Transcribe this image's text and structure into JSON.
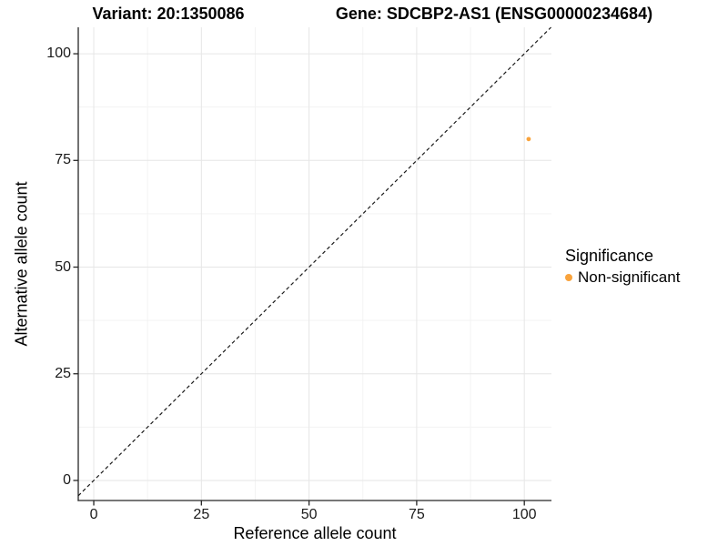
{
  "header": {
    "variant_title": "Variant: 20:1350086",
    "gene_title": "Gene: SDCBP2-AS1 (ENSG00000234684)"
  },
  "chart_data": {
    "type": "scatter",
    "xlabel": "Reference allele count",
    "ylabel": "Alternative allele count",
    "xticks": [
      0,
      25,
      50,
      75,
      100
    ],
    "yticks": [
      0,
      25,
      50,
      75,
      100
    ],
    "minor_ticks": [
      12.5,
      37.5,
      62.5,
      87.5
    ],
    "xlim": [
      -3.6,
      106.3
    ],
    "ylim": [
      -4.7,
      106.2
    ],
    "grid": "major+minor on white background",
    "diagonal": {
      "equation": "y = x",
      "style": "dashed",
      "color": "#1a1a1a"
    },
    "points": [
      {
        "x": 101,
        "y": 80,
        "series": "Non-significant",
        "color": "#F9A33C"
      }
    ],
    "legend": {
      "title": "Significance",
      "position": "right",
      "items": [
        {
          "label": "Non-significant",
          "color": "#F9A33C"
        }
      ]
    },
    "colors": {
      "grid_major": "#E6E6E6",
      "grid_minor": "#F3F3F3",
      "axis_line": "#262626",
      "point_orange": "#F9A33C"
    }
  }
}
